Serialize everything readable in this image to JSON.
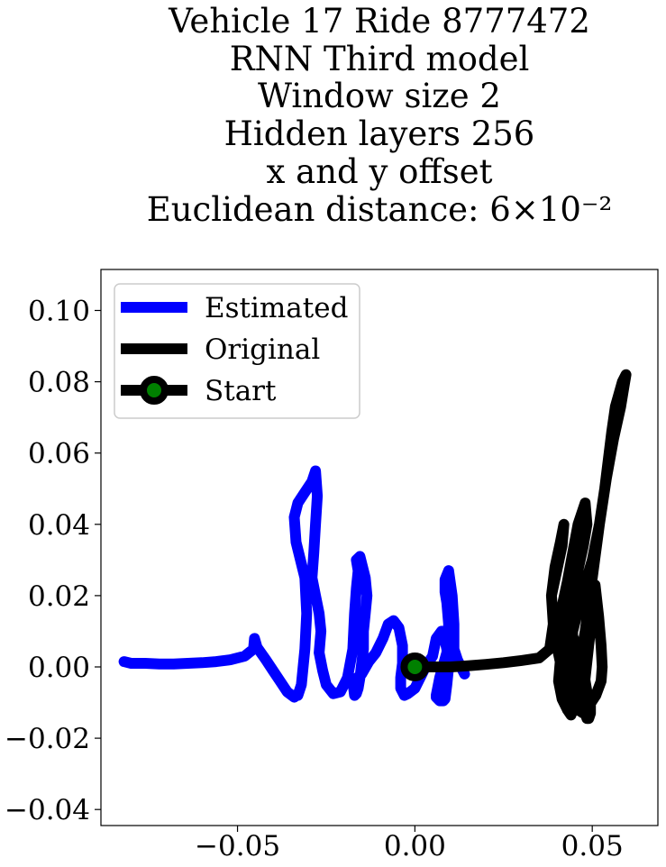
{
  "chart_data": {
    "type": "line",
    "title_lines": [
      "Vehicle 17 Ride 8777472",
      "RNN Third model",
      "Window size 2",
      "Hidden layers 256",
      "x and y offset",
      "Euclidean distance: 6×10⁻²"
    ],
    "xlabel": "",
    "ylabel": "",
    "xlim": [
      -0.0885,
      0.0685
    ],
    "ylim": [
      -0.0445,
      0.1115
    ],
    "xticks": [
      -0.05,
      0.0,
      0.05
    ],
    "xtick_labels": [
      "−0.05",
      "0.00",
      "0.05"
    ],
    "yticks": [
      -0.04,
      -0.02,
      0.0,
      0.02,
      0.04,
      0.06,
      0.08,
      0.1
    ],
    "ytick_labels": [
      "−0.04",
      "−0.02",
      "0.00",
      "0.02",
      "0.04",
      "0.06",
      "0.08",
      "0.10"
    ],
    "grid": false,
    "legend_position": "top-left",
    "series": [
      {
        "name": "Estimated",
        "color": "#0000ff",
        "x": [
          -0.082,
          -0.08,
          -0.076,
          -0.072,
          -0.068,
          -0.064,
          -0.06,
          -0.056,
          -0.052,
          -0.048,
          -0.0455,
          -0.0452,
          -0.0445,
          -0.042,
          -0.04,
          -0.038,
          -0.036,
          -0.034,
          -0.0335,
          -0.033,
          -0.032,
          -0.031,
          -0.0305,
          -0.031,
          -0.0335,
          -0.034,
          -0.033,
          -0.031,
          -0.029,
          -0.028,
          -0.0275,
          -0.028,
          -0.0285,
          -0.029,
          -0.028,
          -0.027,
          -0.0265,
          -0.027,
          -0.026,
          -0.025,
          -0.023,
          -0.021,
          -0.019,
          -0.0175,
          -0.017,
          -0.0165,
          -0.016,
          -0.0165,
          -0.0155,
          -0.014,
          -0.0135,
          -0.014,
          -0.0145,
          -0.0145,
          -0.015,
          -0.0155,
          -0.016,
          -0.0165,
          -0.017,
          -0.0175,
          -0.015,
          -0.013,
          -0.011,
          -0.009,
          -0.0075,
          -0.006,
          -0.0045,
          -0.0035,
          -0.0035,
          -0.004,
          -0.004,
          -0.003,
          -0.002,
          0.0,
          0.001,
          0.003,
          0.005,
          0.006,
          0.0075,
          0.008,
          0.009,
          0.0095,
          0.009,
          0.0085,
          0.008,
          0.007,
          0.006,
          0.006,
          0.007,
          0.009,
          0.0095,
          0.009,
          0.0085,
          0.0085,
          0.0095,
          0.0105,
          0.011,
          0.011,
          0.012,
          0.013,
          0.014
        ],
        "y": [
          0.0015,
          0.001,
          0.001,
          0.0008,
          0.0008,
          0.001,
          0.0012,
          0.0015,
          0.002,
          0.003,
          0.005,
          0.008,
          0.0055,
          0.002,
          -0.001,
          -0.004,
          -0.007,
          -0.0085,
          -0.008,
          -0.008,
          -0.005,
          0.005,
          0.015,
          0.025,
          0.035,
          0.042,
          0.046,
          0.049,
          0.052,
          0.055,
          0.048,
          0.04,
          0.032,
          0.025,
          0.02,
          0.015,
          0.01,
          0.004,
          -0.001,
          -0.005,
          -0.0075,
          -0.007,
          -0.003,
          0.005,
          0.015,
          0.022,
          0.027,
          0.03,
          0.031,
          0.025,
          0.02,
          0.015,
          0.01,
          0.005,
          0.001,
          -0.003,
          -0.006,
          -0.0075,
          -0.008,
          -0.004,
          -0.002,
          0.0015,
          0.004,
          0.008,
          0.012,
          0.013,
          0.011,
          0.006,
          0.001,
          -0.003,
          -0.006,
          -0.008,
          -0.0075,
          -0.006,
          -0.004,
          0.0,
          0.003,
          0.008,
          0.01,
          0.0095,
          0.005,
          0.0,
          -0.005,
          -0.009,
          -0.0095,
          -0.0095,
          -0.0085,
          -0.008,
          -0.003,
          0.004,
          0.012,
          0.018,
          0.021,
          0.0245,
          0.027,
          0.02,
          0.012,
          0.005,
          0.002,
          0.0,
          -0.002
        ]
      },
      {
        "name": "Original",
        "color": "#000000",
        "x": [
          0.0,
          0.005,
          0.01,
          0.015,
          0.02,
          0.025,
          0.03,
          0.035,
          0.038,
          0.039,
          0.0385,
          0.0395,
          0.041,
          0.042,
          0.0415,
          0.04,
          0.0385,
          0.039,
          0.04,
          0.0415,
          0.0425,
          0.043,
          0.043,
          0.042,
          0.041,
          0.0415,
          0.043,
          0.0445,
          0.046,
          0.048,
          0.0485,
          0.0475,
          0.0455,
          0.044,
          0.0425,
          0.041,
          0.0405,
          0.0415,
          0.043,
          0.044,
          0.0445,
          0.0435,
          0.0425,
          0.042,
          0.0425,
          0.0435,
          0.045,
          0.046,
          0.047,
          0.048,
          0.049,
          0.049,
          0.0485,
          0.048,
          0.0475,
          0.048,
          0.049,
          0.05,
          0.0508,
          0.0518,
          0.0525,
          0.0528,
          0.0525,
          0.051,
          0.049,
          0.0475,
          0.046,
          0.0455,
          0.046,
          0.048,
          0.05,
          0.052,
          0.054,
          0.056,
          0.058,
          0.059,
          0.0595,
          0.0585,
          0.0565,
          0.0555,
          0.0545,
          0.0535,
          0.052,
          0.05,
          0.047,
          0.0445,
          0.044,
          0.045,
          0.047,
          0.048,
          0.0485,
          0.049,
          0.0495,
          0.0495,
          0.0485,
          0.048,
          0.0478
        ],
        "y": [
          0.0,
          0.0,
          0.0,
          0.0003,
          0.0007,
          0.0012,
          0.0018,
          0.0025,
          0.005,
          0.012,
          0.02,
          0.028,
          0.035,
          0.04,
          0.034,
          0.027,
          0.02,
          0.013,
          0.006,
          -0.001,
          -0.007,
          -0.012,
          -0.008,
          0.002,
          0.01,
          0.017,
          0.024,
          0.032,
          0.04,
          0.046,
          0.04,
          0.034,
          0.025,
          0.017,
          0.009,
          0.002,
          -0.004,
          -0.009,
          -0.012,
          -0.0135,
          -0.012,
          -0.008,
          -0.004,
          0.002,
          0.008,
          0.012,
          0.007,
          0.002,
          -0.003,
          -0.007,
          -0.01,
          -0.0125,
          -0.0135,
          -0.012,
          -0.008,
          -0.003,
          0.006,
          0.015,
          0.023,
          0.014,
          0.006,
          0.0,
          -0.004,
          -0.008,
          -0.011,
          -0.013,
          -0.012,
          -0.009,
          -0.002,
          0.01,
          0.025,
          0.04,
          0.053,
          0.064,
          0.073,
          0.079,
          0.082,
          0.08,
          0.073,
          0.066,
          0.058,
          0.05,
          0.04,
          0.03,
          0.02,
          0.01,
          0.0,
          -0.005,
          -0.01,
          -0.013,
          -0.0145,
          -0.0145,
          -0.013,
          -0.01,
          -0.007,
          -0.004,
          -0.002
        ]
      }
    ],
    "start": {
      "name": "Start",
      "x": 0.0,
      "y": 0.0,
      "marker_face_color": "#008000",
      "marker_edge_color": "#000000"
    }
  }
}
